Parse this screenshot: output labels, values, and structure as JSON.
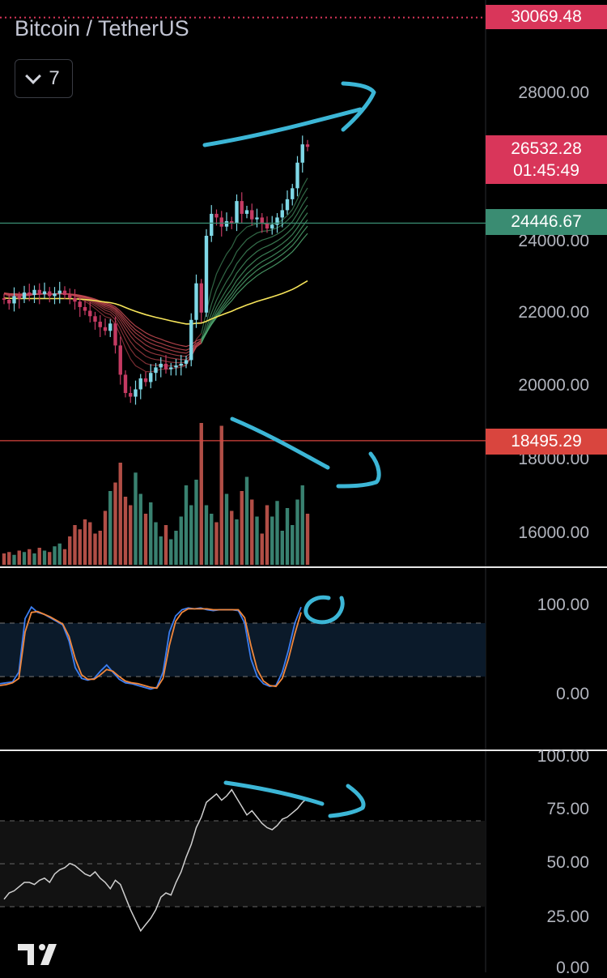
{
  "header": {
    "symbol_title": "Bitcoin / TetherUS",
    "interval_label": "7"
  },
  "price_scale": {
    "ticks": [
      "28000.00",
      "24000.00",
      "22000.00",
      "20000.00",
      "18000.00",
      "16000.00"
    ],
    "tags": {
      "top_level": "30069.48",
      "last_price": "26532.28",
      "countdown": "01:45:49",
      "support_line": "24446.67",
      "lower_line": "18495.29"
    }
  },
  "stoch_scale": {
    "ticks": [
      "100.00",
      "0.00"
    ]
  },
  "rsi_scale": {
    "ticks": [
      "100.00",
      "75.00",
      "50.00",
      "25.00",
      "0.00"
    ]
  },
  "colors": {
    "bull": "#7fd8e6",
    "bear": "#c43a62",
    "annotation": "#3cb6d6",
    "k_line": "#3b7df0",
    "d_line": "#f0873c",
    "ema_slow": "#f7e55a",
    "red_tag": "#d9365a",
    "green_tag": "#3a8c72",
    "lower_tag": "#d9453e"
  },
  "chart_data": [
    {
      "type": "candlestick",
      "title": "Bitcoin / TetherUS",
      "ylim": [
        15500,
        30500
      ],
      "closes": [
        22350,
        22250,
        22450,
        22380,
        22550,
        22480,
        22620,
        22500,
        22580,
        22450,
        22520,
        22600,
        22480,
        22400,
        22300,
        22150,
        22050,
        21900,
        21750,
        21600,
        21500,
        21700,
        21100,
        20300,
        19800,
        19700,
        19900,
        20200,
        20100,
        20350,
        20500,
        20600,
        20450,
        20500,
        20550,
        20600,
        20700,
        21800,
        22800,
        22000,
        24100,
        24700,
        24600,
        24350,
        24500,
        24450,
        25050,
        24700,
        24800,
        24550,
        24600,
        24450,
        24300,
        24400,
        24600,
        24800,
        25100,
        25400,
        26100,
        26600,
        26532
      ],
      "horizontal_levels": [
        30069.48,
        24446.67,
        18495.29
      ],
      "volume_ratios": [
        0.08,
        0.09,
        0.07,
        0.1,
        0.09,
        0.11,
        0.08,
        0.12,
        0.1,
        0.09,
        0.13,
        0.15,
        0.11,
        0.2,
        0.28,
        0.25,
        0.32,
        0.3,
        0.22,
        0.24,
        0.38,
        0.52,
        0.58,
        0.72,
        0.48,
        0.42,
        0.65,
        0.5,
        0.36,
        0.44,
        0.3,
        0.2,
        0.28,
        0.18,
        0.24,
        0.34,
        0.56,
        0.42,
        0.6,
        1.0,
        0.42,
        0.36,
        0.3,
        0.98,
        0.5,
        0.38,
        0.32,
        0.52,
        0.62,
        0.46,
        0.34,
        0.22,
        0.42,
        0.34,
        0.45,
        0.24,
        0.4,
        0.28,
        0.46,
        0.56,
        0.36
      ]
    },
    {
      "type": "line",
      "indicator": "stochastic",
      "ylim": [
        0,
        100
      ],
      "k": [
        12,
        13,
        14,
        25,
        85,
        98,
        92,
        90,
        86,
        82,
        78,
        60,
        30,
        18,
        16,
        18,
        26,
        33,
        25,
        17,
        13,
        12,
        10,
        8,
        6,
        8,
        25,
        70,
        88,
        95,
        97,
        96,
        97,
        95,
        94,
        95,
        95,
        95,
        94,
        80,
        40,
        20,
        12,
        9,
        10,
        25,
        50,
        80,
        98
      ],
      "d": [
        10,
        11,
        13,
        18,
        70,
        92,
        93,
        90,
        87,
        83,
        79,
        65,
        40,
        22,
        17,
        17,
        22,
        28,
        26,
        20,
        15,
        13,
        12,
        10,
        8,
        7,
        18,
        55,
        82,
        92,
        96,
        96,
        96,
        96,
        95,
        95,
        95,
        95,
        95,
        86,
        55,
        28,
        15,
        10,
        9,
        18,
        40,
        68,
        92
      ]
    },
    {
      "type": "line",
      "indicator": "rsi",
      "ylim": [
        0,
        100
      ],
      "values": [
        32,
        35,
        36,
        38,
        40,
        40,
        39,
        41,
        42,
        40,
        44,
        46,
        47,
        49,
        48,
        46,
        44,
        43,
        45,
        42,
        40,
        37,
        41,
        39,
        33,
        27,
        22,
        17,
        20,
        23,
        27,
        33,
        35,
        34,
        40,
        45,
        52,
        58,
        66,
        71,
        78,
        80,
        82,
        79,
        81,
        84,
        80,
        76,
        72,
        74,
        71,
        68,
        66,
        65,
        67,
        70,
        71,
        73,
        75,
        78,
        80
      ]
    }
  ]
}
